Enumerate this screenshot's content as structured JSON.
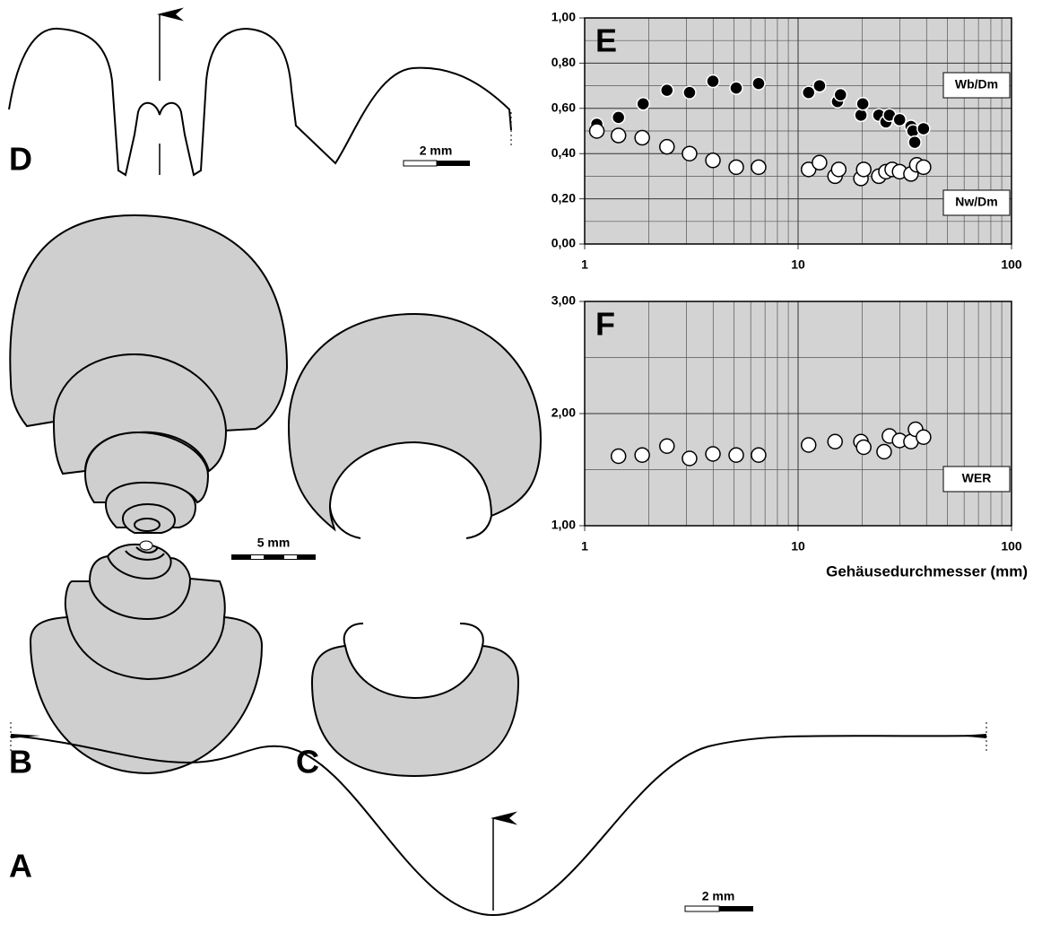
{
  "panels": {
    "A": "A",
    "B": "B",
    "C": "C",
    "D": "D"
  },
  "scale_bars": {
    "D": "2 mm",
    "B": "5 mm",
    "A": "2 mm"
  },
  "chart_data": [
    {
      "type": "scatter",
      "panel": "E",
      "log_x": true,
      "grid": true,
      "xlim": [
        1,
        100
      ],
      "xticks": [
        1,
        10,
        100
      ],
      "ylim": [
        0,
        1
      ],
      "yticks": [
        {
          "value": 0,
          "label": "0,00"
        },
        {
          "value": 0.2,
          "label": "0,20"
        },
        {
          "value": 0.4,
          "label": "0,40"
        },
        {
          "value": 0.6,
          "label": "0,60"
        },
        {
          "value": 0.8,
          "label": "0,80"
        },
        {
          "value": 1,
          "label": "1,00"
        }
      ],
      "series": [
        {
          "name": "Wb/Dm",
          "color": "#000000",
          "x": [
            1.14,
            1.44,
            1.88,
            2.43,
            3.1,
            3.99,
            5.13,
            6.53,
            11.2,
            12.6,
            15.3,
            15.8,
            19.7,
            20.1,
            23.9,
            25.8,
            26.8,
            29.9,
            33.8,
            34.5,
            35.2,
            38.7
          ],
          "values": [
            0.53,
            0.56,
            0.62,
            0.68,
            0.67,
            0.72,
            0.69,
            0.71,
            0.67,
            0.7,
            0.63,
            0.66,
            0.57,
            0.62,
            0.57,
            0.54,
            0.57,
            0.55,
            0.52,
            0.5,
            0.45,
            0.51
          ]
        },
        {
          "name": "Nw/Dm",
          "color": "#ffffff",
          "x": [
            1.14,
            1.44,
            1.86,
            2.43,
            3.1,
            3.99,
            5.13,
            6.53,
            11.2,
            12.6,
            14.9,
            15.5,
            19.7,
            20.3,
            23.9,
            25.8,
            27.6,
            29.9,
            33.8,
            36.0,
            38.7
          ],
          "values": [
            0.5,
            0.48,
            0.47,
            0.43,
            0.4,
            0.37,
            0.34,
            0.34,
            0.33,
            0.36,
            0.3,
            0.33,
            0.29,
            0.33,
            0.3,
            0.32,
            0.33,
            0.32,
            0.31,
            0.35,
            0.34
          ]
        }
      ]
    },
    {
      "type": "scatter",
      "panel": "F",
      "log_x": true,
      "grid": true,
      "xlim": [
        1,
        100
      ],
      "xticks": [
        1,
        10,
        100
      ],
      "ylim": [
        1,
        3
      ],
      "yticks": [
        {
          "value": 1,
          "label": "1,00"
        },
        {
          "value": 2,
          "label": "2,00"
        },
        {
          "value": 3,
          "label": "3,00"
        }
      ],
      "x_label": "Gehäusedurchmesser (mm)",
      "series": [
        {
          "name": "WER",
          "color": "#ffffff",
          "x": [
            1.44,
            1.86,
            2.43,
            3.1,
            3.99,
            5.13,
            6.53,
            11.2,
            14.9,
            19.7,
            20.3,
            25.3,
            26.8,
            29.9,
            33.8,
            35.5,
            38.7
          ],
          "values": [
            1.62,
            1.63,
            1.71,
            1.6,
            1.64,
            1.63,
            1.63,
            1.72,
            1.75,
            1.75,
            1.7,
            1.66,
            1.8,
            1.76,
            1.75,
            1.86,
            1.79
          ]
        }
      ]
    }
  ]
}
